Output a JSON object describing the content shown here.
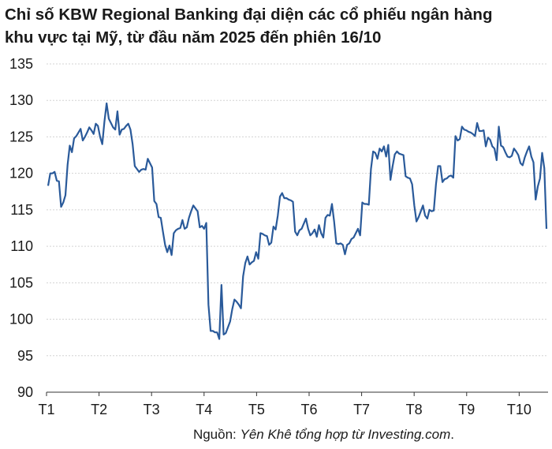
{
  "chart_data": {
    "type": "line",
    "title_line1": "Chỉ số KBW Regional Banking đại diện các cổ phiếu ngân hàng",
    "title_line2": "khu vực tại Mỹ, từ đầu năm 2025 đến phiên 16/10",
    "ylim": [
      90,
      135
    ],
    "yticks": [
      90,
      95,
      100,
      105,
      110,
      115,
      120,
      125,
      130,
      135
    ],
    "xticks": [
      "T1",
      "T2",
      "T3",
      "T4",
      "T5",
      "T6",
      "T7",
      "T8",
      "T9",
      "T10"
    ],
    "grid": true,
    "series": [
      {
        "values": [
          118.3,
          120.0,
          120.0,
          120.2,
          119.0,
          118.9,
          115.4,
          116.0,
          117.0,
          121.2,
          123.8,
          122.9,
          124.8,
          125.1,
          125.6,
          126.1,
          124.5,
          125.0,
          125.6,
          126.3,
          125.9,
          125.4,
          126.8,
          126.5,
          125.0,
          124.0,
          127.1,
          129.6,
          127.5,
          126.9,
          126.3,
          126.0,
          128.5,
          125.3,
          126.0,
          126.1,
          126.5,
          126.8,
          126.0,
          124.0,
          121.0,
          120.6,
          120.2,
          120.5,
          120.6,
          120.5,
          122.0,
          121.4,
          120.8,
          116.2,
          115.8,
          114.0,
          113.9,
          112.0,
          110.2,
          109.2,
          110.1,
          108.8,
          111.8,
          112.2,
          112.4,
          112.5,
          113.6,
          112.4,
          112.6,
          113.9,
          114.8,
          115.6,
          115.2,
          114.8,
          112.6,
          112.8,
          112.4,
          113.2,
          102.0,
          98.4,
          98.4,
          98.2,
          98.2,
          97.3,
          104.7,
          97.9,
          98.1,
          98.9,
          99.7,
          101.4,
          102.7,
          102.4,
          102.0,
          101.5,
          105.9,
          107.7,
          108.6,
          107.5,
          107.8,
          108.0,
          109.2,
          108.3,
          111.8,
          111.7,
          111.5,
          111.4,
          110.2,
          110.5,
          112.7,
          112.3,
          114.2,
          116.8,
          117.3,
          116.6,
          116.6,
          116.4,
          116.3,
          116.1,
          112.0,
          111.5,
          112.2,
          112.4,
          113.1,
          113.8,
          112.4,
          111.5,
          111.8,
          112.3,
          111.3,
          112.9,
          111.8,
          111.2,
          113.9,
          114.3,
          114.2,
          115.8,
          113.4,
          110.4,
          110.3,
          110.4,
          110.2,
          108.9,
          110.2,
          110.4,
          111.0,
          111.2,
          111.8,
          112.4,
          111.5,
          116.0,
          115.8,
          115.8,
          115.7,
          120.6,
          123.0,
          122.8,
          122.0,
          123.4,
          123.0,
          123.7,
          122.3,
          123.9,
          119.1,
          121.0,
          122.6,
          123.0,
          122.7,
          122.6,
          122.5,
          119.6,
          119.4,
          119.3,
          118.5,
          115.6,
          113.4,
          114.0,
          114.8,
          115.6,
          114.2,
          113.8,
          115.0,
          114.8,
          114.9,
          118.5,
          121.0,
          121.0,
          118.8,
          119.2,
          119.3,
          119.6,
          119.7,
          119.4,
          125.1,
          124.5,
          124.7,
          126.4,
          126.0,
          125.9,
          125.7,
          125.6,
          125.4,
          125.1,
          126.9,
          125.8,
          125.8,
          125.9,
          123.7,
          124.9,
          124.6,
          123.7,
          123.4,
          121.8,
          126.4,
          123.8,
          123.6,
          122.9,
          122.3,
          122.2,
          122.4,
          123.4,
          123.0,
          122.5,
          121.4,
          121.1,
          122.2,
          123.0,
          123.7,
          122.3,
          121.5,
          116.4,
          118.2,
          119.3,
          122.8,
          120.7,
          112.4
        ]
      }
    ],
    "source_prefix": "Nguồn: ",
    "source_text": "Yên Khê tổng hợp từ Investing.com",
    "source_suffix": "."
  }
}
